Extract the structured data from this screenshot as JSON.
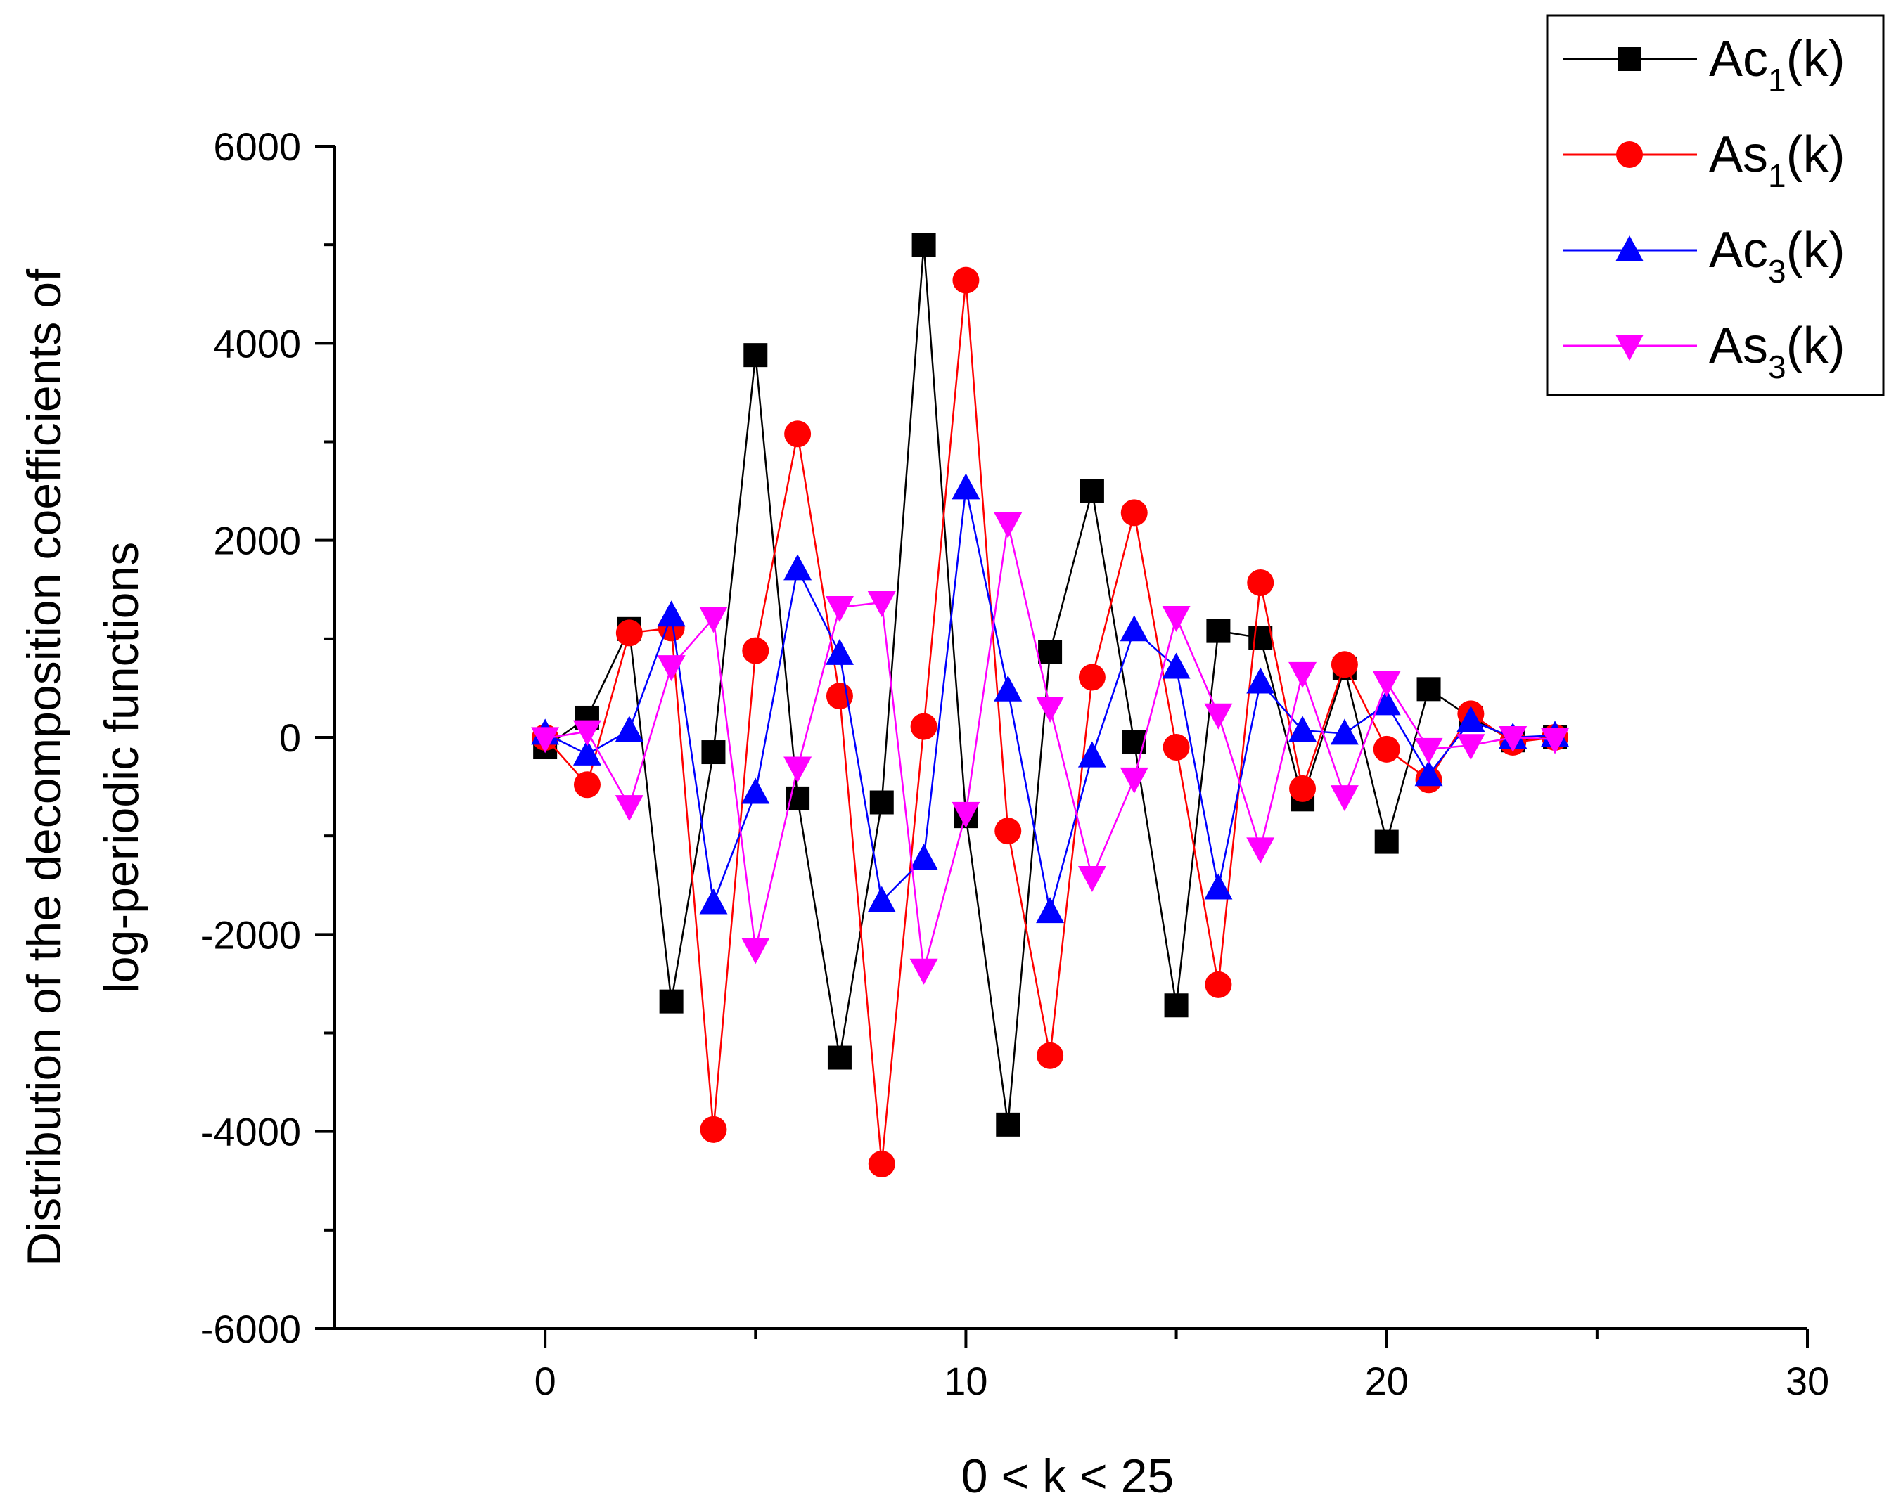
{
  "chart_data": {
    "type": "line",
    "title": "",
    "xlabel": "0 < k < 25",
    "ylabel_lines": [
      "Distribution of the decomposition coefficients of",
      "log-periodic functions"
    ],
    "xlim": [
      -5,
      30
    ],
    "ylim": [
      -6000,
      6000
    ],
    "xticks": [
      0,
      10,
      20,
      30
    ],
    "xtick_labels": [
      "0",
      "10",
      "20",
      "30"
    ],
    "xminor": [
      5,
      15,
      25
    ],
    "yticks": [
      -6000,
      -4000,
      -2000,
      0,
      2000,
      4000,
      6000
    ],
    "ytick_labels": [
      "-6000",
      "-4000",
      "-2000",
      "0",
      "2000",
      "4000",
      "6000"
    ],
    "yminor": [
      -5000,
      -3000,
      -1000,
      1000,
      3000,
      5000
    ],
    "grid": false,
    "legend_position": "top-right",
    "x": [
      0,
      1,
      2,
      3,
      4,
      5,
      6,
      7,
      8,
      9,
      10,
      11,
      12,
      13,
      14,
      15,
      16,
      17,
      18,
      19,
      20,
      21,
      22,
      23,
      24
    ],
    "series": [
      {
        "name": "Ac1(k)",
        "label_main": "Ac",
        "label_sub": "1",
        "label_tail": "(k)",
        "color": "#000000",
        "marker": "square",
        "values": [
          -100,
          200,
          1100,
          -2680,
          -150,
          3880,
          -620,
          -3250,
          -660,
          5000,
          -800,
          -3930,
          870,
          2500,
          -50,
          -2720,
          1080,
          1010,
          -630,
          700,
          -1060,
          490,
          200,
          -30,
          0
        ]
      },
      {
        "name": "As1(k)",
        "label_main": "As",
        "label_sub": "1",
        "label_tail": "(k)",
        "color": "#ff0000",
        "marker": "circle",
        "values": [
          0,
          -480,
          1060,
          1110,
          -3980,
          880,
          3080,
          420,
          -4330,
          110,
          4640,
          -950,
          -3230,
          610,
          2280,
          -100,
          -2510,
          1570,
          -520,
          740,
          -120,
          -430,
          240,
          -50,
          0
        ]
      },
      {
        "name": "Ac3(k)",
        "label_main": "Ac",
        "label_sub": "3",
        "label_tail": "(k)",
        "color": "#0000ff",
        "marker": "triangle-up",
        "values": [
          40,
          -170,
          70,
          1240,
          -1680,
          -560,
          1710,
          850,
          -1660,
          -1230,
          2530,
          480,
          -1770,
          -190,
          1090,
          710,
          -1530,
          560,
          70,
          40,
          340,
          -380,
          170,
          0,
          20
        ]
      },
      {
        "name": "As3(k)",
        "label_main": "As",
        "label_sub": "3",
        "label_tail": "(k)",
        "color": "#ff00ff",
        "marker": "triangle-down",
        "values": [
          -10,
          60,
          -700,
          720,
          1210,
          -2150,
          -310,
          1320,
          1370,
          -2360,
          -770,
          2170,
          300,
          -1420,
          -420,
          1220,
          230,
          -1130,
          650,
          -600,
          560,
          -120,
          -80,
          0,
          -20
        ]
      }
    ]
  }
}
